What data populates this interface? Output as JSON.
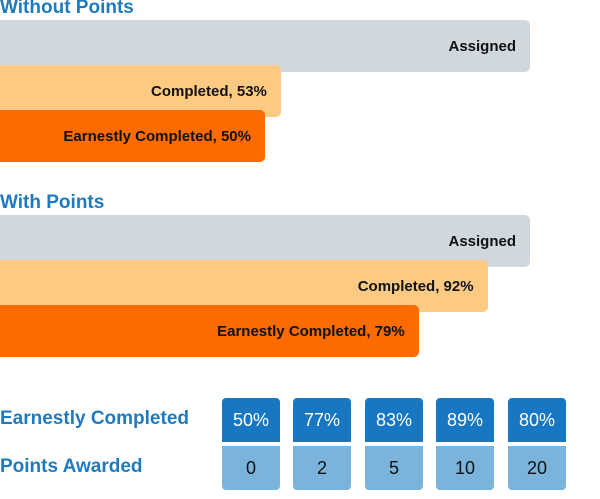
{
  "colors": {
    "heading": "#1f7bc0",
    "assigned": "#d0d7dd",
    "completed": "#fdca84",
    "earnest": "#fc6b00",
    "table_top": "#1877c2",
    "table_bottom": "#7ab3dc"
  },
  "chart_data": [
    {
      "type": "bar",
      "orientation": "horizontal",
      "title": "Without Points",
      "bars": [
        {
          "key": "assigned",
          "label": "Assigned",
          "value": 100
        },
        {
          "key": "completed",
          "label": "Completed, 53%",
          "value": 53
        },
        {
          "key": "earnest",
          "label": "Earnestly Completed, 50%",
          "value": 50
        }
      ]
    },
    {
      "type": "bar",
      "orientation": "horizontal",
      "title": "With Points",
      "bars": [
        {
          "key": "assigned",
          "label": "Assigned",
          "value": 100
        },
        {
          "key": "completed",
          "label": "Completed, 92%",
          "value": 92
        },
        {
          "key": "earnest",
          "label": "Earnestly Completed, 79%",
          "value": 79
        }
      ]
    },
    {
      "type": "table",
      "rows": [
        {
          "label": "Earnestly Completed",
          "values": [
            "50%",
            "77%",
            "83%",
            "89%",
            "80%"
          ]
        },
        {
          "label": "Points Awarded",
          "values": [
            "0",
            "2",
            "5",
            "10",
            "20"
          ]
        }
      ]
    }
  ]
}
